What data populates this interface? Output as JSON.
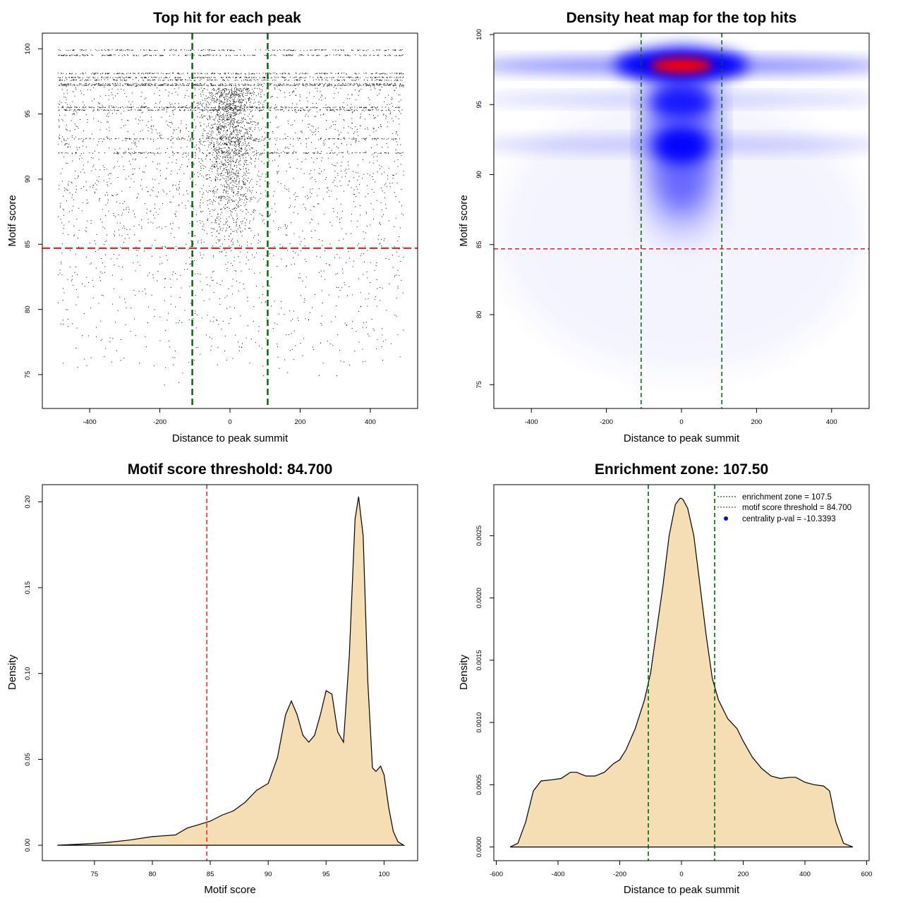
{
  "chart_data": [
    {
      "type": "scatter",
      "title": "Top hit for each peak",
      "xlabel": "Distance to peak summit",
      "ylabel": "Motif score",
      "xlim": [
        -535,
        535
      ],
      "ylim": [
        72.4,
        101.2
      ],
      "xticks": [
        -400,
        -200,
        0,
        200,
        400
      ],
      "xtick_labels": [
        "-400",
        "-200",
        "0",
        "200",
        "400"
      ],
      "yticks": [
        75,
        80,
        85,
        90,
        95,
        100
      ],
      "ytick_labels": [
        "75",
        "80",
        "85",
        "90",
        "95",
        "100"
      ],
      "x_range_of_points": [
        -490,
        495
      ],
      "y_range_of_points": [
        73.5,
        100
      ],
      "dense_score_bands": [
        99.9,
        99.5,
        98.1,
        97.8,
        97.6,
        97.3,
        95.5,
        95.3,
        93.1,
        92.0
      ],
      "vlines": [
        -107.5,
        107.5
      ],
      "hline": 84.7,
      "colors": {
        "points": "#000000",
        "vline": "#006400",
        "hline": "#dd2222"
      }
    },
    {
      "type": "heatmap",
      "title": "Density heat map for the top hits",
      "xlabel": "Distance to peak summit",
      "ylabel": "Motif score",
      "xlim": [
        -500,
        500
      ],
      "ylim": [
        73.3,
        100.1
      ],
      "xticks": [
        -400,
        -200,
        0,
        200,
        400
      ],
      "xtick_labels": [
        "-400",
        "-200",
        "0",
        "200",
        "400"
      ],
      "yticks": [
        75,
        80,
        85,
        90,
        95,
        100
      ],
      "ytick_labels": [
        "75",
        "80",
        "85",
        "90",
        "95",
        "100"
      ],
      "density_peaks": [
        {
          "x": 0,
          "y": 97.8,
          "level": "high (red)"
        },
        {
          "x": 0,
          "y": 92.1,
          "level": "medium (blue)"
        },
        {
          "x": 0,
          "y": 95.3,
          "level": "medium (blue)"
        }
      ],
      "vlines": [
        -107.5,
        107.5
      ],
      "hline": 84.7,
      "colors": {
        "low": "#ffffff",
        "mid": "#0000ff",
        "high": "#ff0000",
        "vline": "#006400",
        "hline": "#dd2222"
      }
    },
    {
      "type": "area",
      "title": "Motif score threshold: 84.700",
      "xlabel": "Motif score",
      "ylabel": "Density",
      "xlim": [
        70.5,
        102.9
      ],
      "ylim": [
        -0.009,
        0.21
      ],
      "xticks": [
        75,
        80,
        85,
        90,
        95,
        100
      ],
      "xtick_labels": [
        "75",
        "80",
        "85",
        "90",
        "95",
        "100"
      ],
      "yticks": [
        0,
        0.05,
        0.1,
        0.15,
        0.2
      ],
      "ytick_labels": [
        "0.00",
        "0.05",
        "0.10",
        "0.15",
        "0.20"
      ],
      "x": [
        71.8,
        74,
        76,
        78,
        80,
        81,
        82,
        83,
        84,
        85,
        86,
        87,
        88,
        89,
        90,
        90.8,
        91.5,
        92,
        92.5,
        93,
        93.5,
        94,
        94.5,
        95,
        95.5,
        96,
        96.5,
        97,
        97.5,
        97.8,
        98.2,
        98.6,
        99,
        99.3,
        99.7,
        100,
        100.4,
        100.8,
        101.2,
        101.7
      ],
      "y": [
        0.0,
        0.0007,
        0.0015,
        0.003,
        0.005,
        0.0055,
        0.006,
        0.01,
        0.012,
        0.014,
        0.0175,
        0.02,
        0.025,
        0.032,
        0.036,
        0.051,
        0.076,
        0.084,
        0.076,
        0.064,
        0.06,
        0.064,
        0.076,
        0.09,
        0.088,
        0.066,
        0.06,
        0.11,
        0.19,
        0.203,
        0.18,
        0.095,
        0.045,
        0.043,
        0.046,
        0.041,
        0.022,
        0.008,
        0.002,
        0.0
      ],
      "vline": 84.7,
      "colors": {
        "fill": "#f5deb3",
        "line": "#000000",
        "vline": "#dd2222"
      }
    },
    {
      "type": "area",
      "title": "Enrichment zone: 107.50",
      "xlabel": "Distance to peak summit",
      "ylabel": "Density",
      "xlim": [
        -608,
        608
      ],
      "ylim": [
        -0.00011,
        0.00291
      ],
      "xticks": [
        -600,
        -400,
        -200,
        0,
        200,
        400,
        600
      ],
      "xtick_labels": [
        "-600",
        "-400",
        "-200",
        "0",
        "200",
        "400",
        "600"
      ],
      "yticks": [
        0,
        0.0005,
        0.001,
        0.0015,
        0.002,
        0.0025
      ],
      "ytick_labels": [
        "0.0000",
        "0.0005",
        "0.0010",
        "0.0015",
        "0.0020",
        "0.0025"
      ],
      "x": [
        -555,
        -530,
        -505,
        -480,
        -455,
        -420,
        -390,
        -360,
        -340,
        -310,
        -280,
        -250,
        -220,
        -200,
        -180,
        -150,
        -120,
        -100,
        -80,
        -60,
        -40,
        -20,
        -5,
        0,
        5,
        20,
        40,
        60,
        80,
        100,
        120,
        150,
        180,
        200,
        230,
        260,
        290,
        320,
        350,
        370,
        400,
        430,
        460,
        480,
        500,
        525,
        555
      ],
      "y": [
        0.0,
        3e-05,
        0.0002,
        0.00045,
        0.00053,
        0.00054,
        0.00055,
        0.0006,
        0.0006,
        0.00057,
        0.00057,
        0.0006,
        0.00067,
        0.0007,
        0.00078,
        0.00095,
        0.00118,
        0.0014,
        0.00175,
        0.0021,
        0.0025,
        0.00275,
        0.0028,
        0.0028,
        0.00279,
        0.00272,
        0.0025,
        0.0021,
        0.0017,
        0.00135,
        0.00118,
        0.00103,
        0.00095,
        0.00085,
        0.00072,
        0.00063,
        0.00057,
        0.00055,
        0.00056,
        0.00056,
        0.00052,
        0.0005,
        0.00049,
        0.00045,
        0.0002,
        3e-05,
        0.0
      ],
      "vlines": [
        -107.5,
        107.5
      ],
      "legend": [
        {
          "label": "enrichment zone = 107.5",
          "kind": "line",
          "color": "#006400"
        },
        {
          "label": "motif score threshold = 84.700",
          "kind": "line",
          "color": "#dd2222"
        },
        {
          "label": "centrality p-val = -10.3393",
          "kind": "point",
          "color": "#0000ff"
        }
      ],
      "legend_position": "top-right",
      "colors": {
        "fill": "#f5deb3",
        "line": "#000000",
        "vline": "#006400"
      }
    }
  ]
}
